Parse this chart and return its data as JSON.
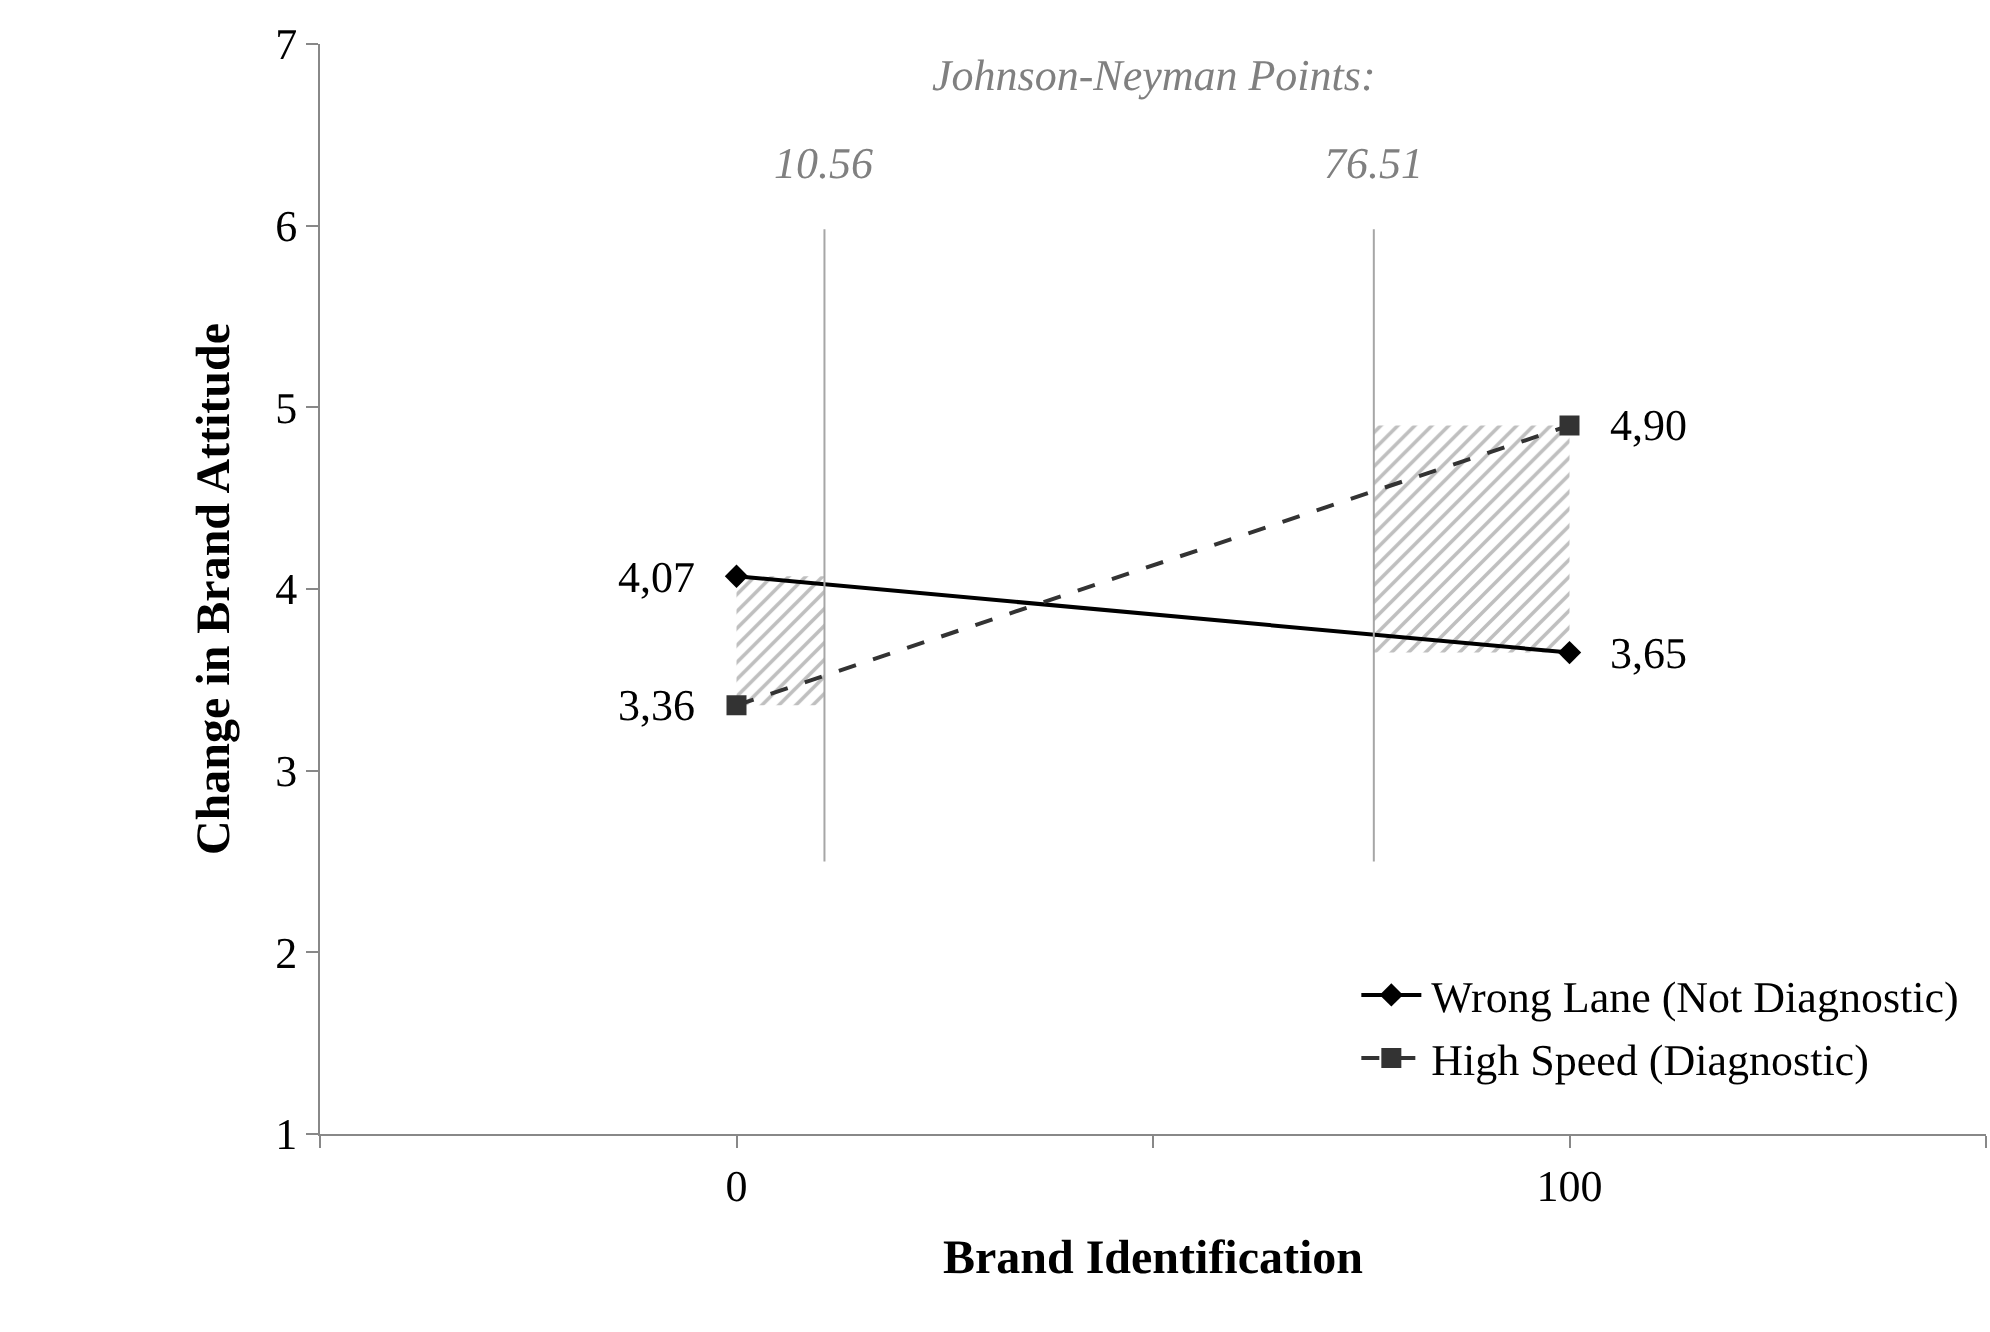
{
  "chart_data": {
    "type": "line",
    "xlabel": "Brand Identification",
    "ylabel": "Change in Brand Attitude",
    "x": [
      0,
      100
    ],
    "series": [
      {
        "name": "Wrong Lane (Not Diagnostic)",
        "color": "#000000",
        "values": [
          4.07,
          3.65
        ],
        "value_labels": [
          "4,07",
          "3,65"
        ],
        "marker": "diamond",
        "line_style": "solid"
      },
      {
        "name": "High Speed (Diagnostic)",
        "color": "#333333",
        "values": [
          3.36,
          4.9
        ],
        "value_labels": [
          "3,36",
          "4,90"
        ],
        "marker": "square",
        "line_style": "dashed"
      }
    ],
    "xlim": [
      -50,
      150
    ],
    "xticks": [
      {
        "value": -50,
        "label": null
      },
      0,
      {
        "value": 50,
        "label": null
      },
      100,
      {
        "value": 150,
        "label": null
      }
    ],
    "ylim": [
      1,
      7
    ],
    "yticks": [
      1,
      2,
      3,
      4,
      5,
      6,
      7
    ],
    "ref_lines": [
      {
        "axis": "x",
        "value": 10.56,
        "label": "10.56",
        "color": "#a6a6a6"
      },
      {
        "axis": "x",
        "value": 76.51,
        "label": "76.51",
        "color": "#a6a6a6"
      }
    ],
    "bands": [
      {
        "axis": "x",
        "from": 0,
        "to": 10.56,
        "color": "#7f7f7f"
      },
      {
        "axis": "x",
        "from": 76.51,
        "to": 100,
        "color": "#7f7f7f"
      }
    ],
    "annotations": [
      "Johnson-Neyman Points:"
    ],
    "legend": "bottom right"
  }
}
